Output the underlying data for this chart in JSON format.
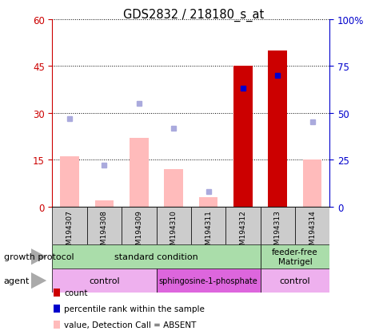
{
  "title": "GDS2832 / 218180_s_at",
  "samples": [
    "GSM194307",
    "GSM194308",
    "GSM194309",
    "GSM194310",
    "GSM194311",
    "GSM194312",
    "GSM194313",
    "GSM194314"
  ],
  "bar_values_pink": [
    16,
    2,
    22,
    12,
    3,
    0,
    0,
    15
  ],
  "bar_values_red": [
    0,
    0,
    0,
    0,
    0,
    45,
    50,
    0
  ],
  "dots_rank_pct": [
    47,
    22,
    55,
    42,
    8,
    63,
    70,
    45
  ],
  "dots_blue_present": [
    false,
    false,
    false,
    false,
    false,
    true,
    true,
    false
  ],
  "ylim_left": [
    0,
    60
  ],
  "ylim_right": [
    0,
    100
  ],
  "yticks_left": [
    0,
    15,
    30,
    45,
    60
  ],
  "yticks_right": [
    0,
    25,
    50,
    75,
    100
  ],
  "yticklabels_right": [
    "0",
    "25",
    "50",
    "75",
    "100%"
  ],
  "bar_color_pink": "#ffbbbb",
  "bar_color_red": "#cc0000",
  "dot_color_blue_dark": "#0000cc",
  "dot_color_blue_light": "#aaaadd",
  "left_axis_color": "#cc0000",
  "right_axis_color": "#0000cc",
  "growth_color": "#aaddaa",
  "agent_control_color": "#eeb0ee",
  "agent_sphingo_color": "#dd66dd",
  "sample_box_color": "#cccccc",
  "arrow_color": "#aaaaaa"
}
